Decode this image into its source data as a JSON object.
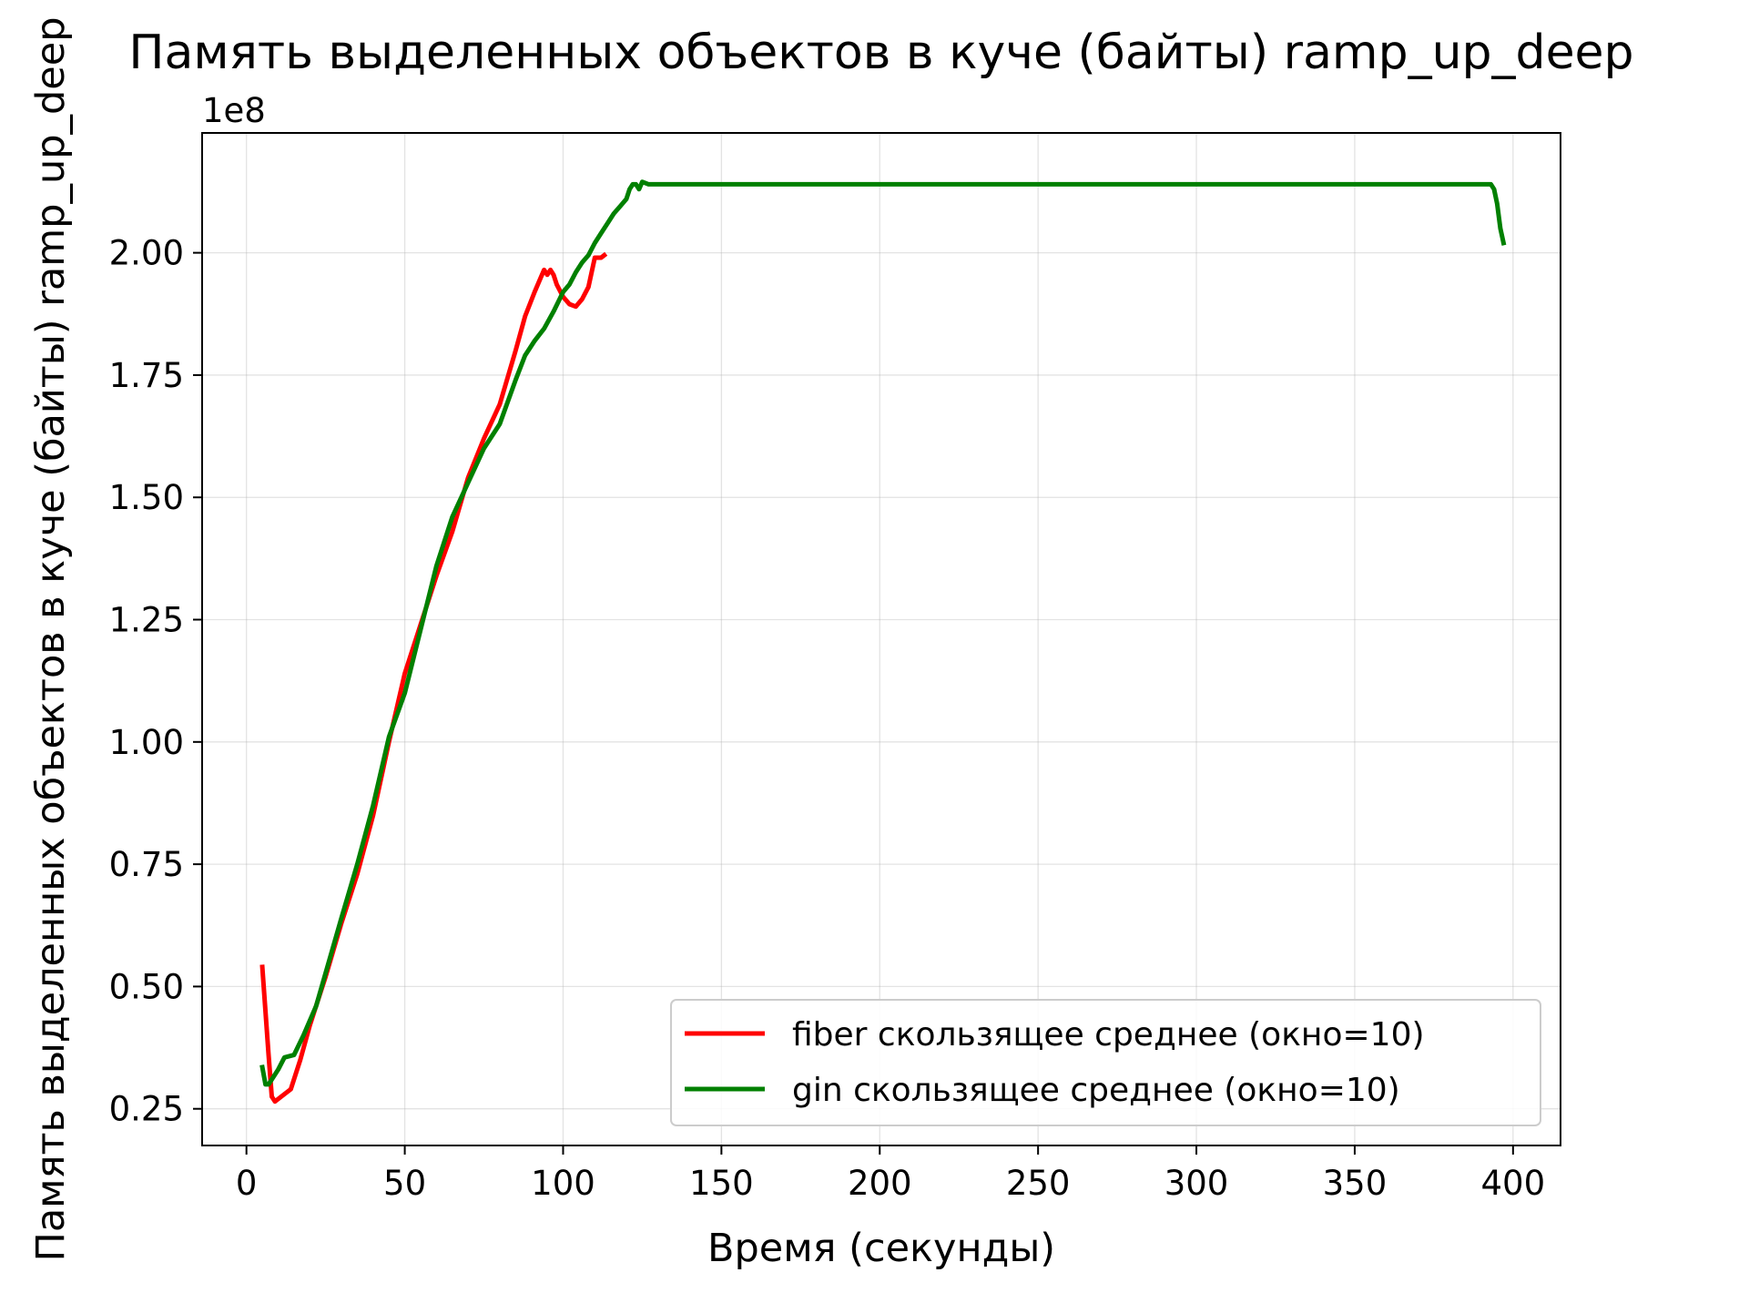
{
  "chart_data": {
    "type": "line",
    "title": "Память выделенных объектов в куче (байты) ramp_up_deep",
    "xlabel": "Время (секунды)",
    "ylabel": "Память выделенных объектов в куче (байты) ramp_up_deep",
    "y_offset_label": "1e8",
    "xlim": [
      -14,
      415
    ],
    "ylim": [
      0.175,
      2.245
    ],
    "y_scale": 100000000.0,
    "xticks": [
      0,
      50,
      100,
      150,
      200,
      250,
      300,
      350,
      400
    ],
    "xtick_labels": [
      "0",
      "50",
      "100",
      "150",
      "200",
      "250",
      "300",
      "350",
      "400"
    ],
    "yticks": [
      0.25,
      0.5,
      0.75,
      1.0,
      1.25,
      1.5,
      1.75,
      2.0
    ],
    "ytick_labels": [
      "0.25",
      "0.50",
      "0.75",
      "1.00",
      "1.25",
      "1.50",
      "1.75",
      "2.00"
    ],
    "grid": true,
    "legend_position": "lower-right",
    "series": [
      {
        "name": "fiber скользящее среднее (окно=10)",
        "color": "#ff0000",
        "points": [
          [
            5,
            0.54
          ],
          [
            7,
            0.36
          ],
          [
            8,
            0.275
          ],
          [
            9,
            0.265
          ],
          [
            11,
            0.275
          ],
          [
            14,
            0.29
          ],
          [
            17,
            0.35
          ],
          [
            20,
            0.42
          ],
          [
            25,
            0.52
          ],
          [
            30,
            0.63
          ],
          [
            35,
            0.73
          ],
          [
            40,
            0.85
          ],
          [
            45,
            1.0
          ],
          [
            50,
            1.14
          ],
          [
            55,
            1.24
          ],
          [
            60,
            1.34
          ],
          [
            65,
            1.43
          ],
          [
            70,
            1.54
          ],
          [
            75,
            1.62
          ],
          [
            80,
            1.69
          ],
          [
            85,
            1.8
          ],
          [
            88,
            1.87
          ],
          [
            91,
            1.92
          ],
          [
            93,
            1.95
          ],
          [
            94,
            1.965
          ],
          [
            95,
            1.955
          ],
          [
            96,
            1.965
          ],
          [
            97,
            1.955
          ],
          [
            98,
            1.935
          ],
          [
            100,
            1.91
          ],
          [
            102,
            1.895
          ],
          [
            104,
            1.89
          ],
          [
            106,
            1.905
          ],
          [
            108,
            1.93
          ],
          [
            110,
            1.99
          ],
          [
            112,
            1.99
          ],
          [
            113,
            1.995
          ]
        ]
      },
      {
        "name": "gin скользящее среднее (окно=10)",
        "color": "#008000",
        "points": [
          [
            5,
            0.335
          ],
          [
            6,
            0.3
          ],
          [
            7,
            0.3
          ],
          [
            8,
            0.31
          ],
          [
            10,
            0.33
          ],
          [
            12,
            0.355
          ],
          [
            15,
            0.36
          ],
          [
            18,
            0.4
          ],
          [
            22,
            0.46
          ],
          [
            26,
            0.55
          ],
          [
            30,
            0.64
          ],
          [
            35,
            0.75
          ],
          [
            40,
            0.87
          ],
          [
            45,
            1.01
          ],
          [
            50,
            1.1
          ],
          [
            55,
            1.23
          ],
          [
            60,
            1.36
          ],
          [
            65,
            1.46
          ],
          [
            70,
            1.53
          ],
          [
            75,
            1.6
          ],
          [
            80,
            1.65
          ],
          [
            85,
            1.74
          ],
          [
            88,
            1.79
          ],
          [
            91,
            1.82
          ],
          [
            94,
            1.845
          ],
          [
            97,
            1.88
          ],
          [
            100,
            1.92
          ],
          [
            102,
            1.935
          ],
          [
            104,
            1.96
          ],
          [
            106,
            1.98
          ],
          [
            108,
            1.995
          ],
          [
            110,
            2.02
          ],
          [
            112,
            2.04
          ],
          [
            114,
            2.06
          ],
          [
            116,
            2.08
          ],
          [
            118,
            2.095
          ],
          [
            120,
            2.11
          ],
          [
            121,
            2.13
          ],
          [
            122,
            2.14
          ],
          [
            123,
            2.14
          ],
          [
            124,
            2.13
          ],
          [
            125,
            2.145
          ],
          [
            127,
            2.14
          ],
          [
            128,
            2.14
          ],
          [
            200,
            2.14
          ],
          [
            300,
            2.14
          ],
          [
            393,
            2.14
          ],
          [
            394,
            2.13
          ],
          [
            395,
            2.1
          ],
          [
            396,
            2.05
          ],
          [
            397,
            2.02
          ]
        ]
      }
    ]
  }
}
